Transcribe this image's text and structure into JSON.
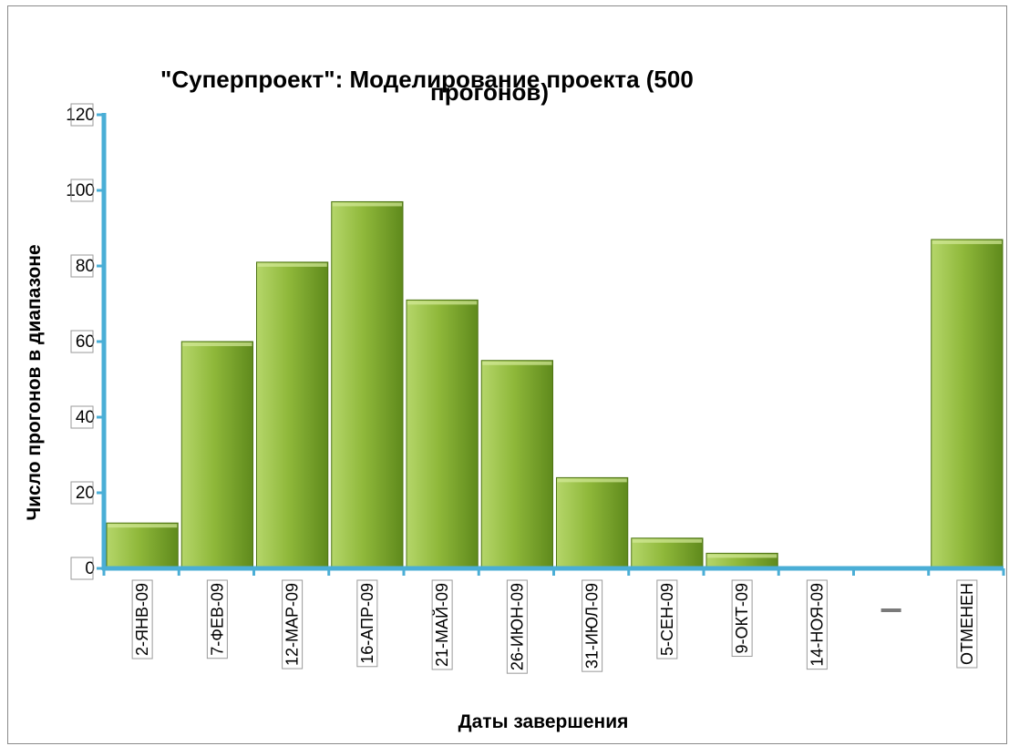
{
  "chart_data": {
    "type": "bar",
    "title": "\"Суперпроект\":    Моделирование проекта (500 прогонов)",
    "title_lines": [
      "\"Суперпроект\":    Моделирование проекта (500",
      "прогонов)"
    ],
    "xlabel": "Даты завершения",
    "ylabel": "Число прогонов в диапазоне",
    "categories": [
      "2-ЯНВ-09",
      "7-ФЕВ-09",
      "12-МАР-09",
      "16-АПР-09",
      "21-МАЙ-09",
      "26-ИЮН-09",
      "31-ИЮЛ-09",
      "5-СЕН-09",
      "9-ОКТ-09",
      "14-НОЯ-09",
      "",
      "ОТМЕНЕН"
    ],
    "values": [
      12,
      60,
      81,
      97,
      71,
      55,
      24,
      8,
      4,
      0,
      0,
      87
    ],
    "ylim": [
      0,
      120
    ],
    "yticks": [
      0,
      20,
      40,
      60,
      80,
      100,
      120
    ],
    "grid": false,
    "legend": "none",
    "colors": {
      "bar_light": "#b5d66a",
      "bar_mid": "#8fb83a",
      "bar_dark": "#5f8a1c",
      "bar_edge": "#4e7414",
      "axis": "#4aaed6"
    }
  }
}
